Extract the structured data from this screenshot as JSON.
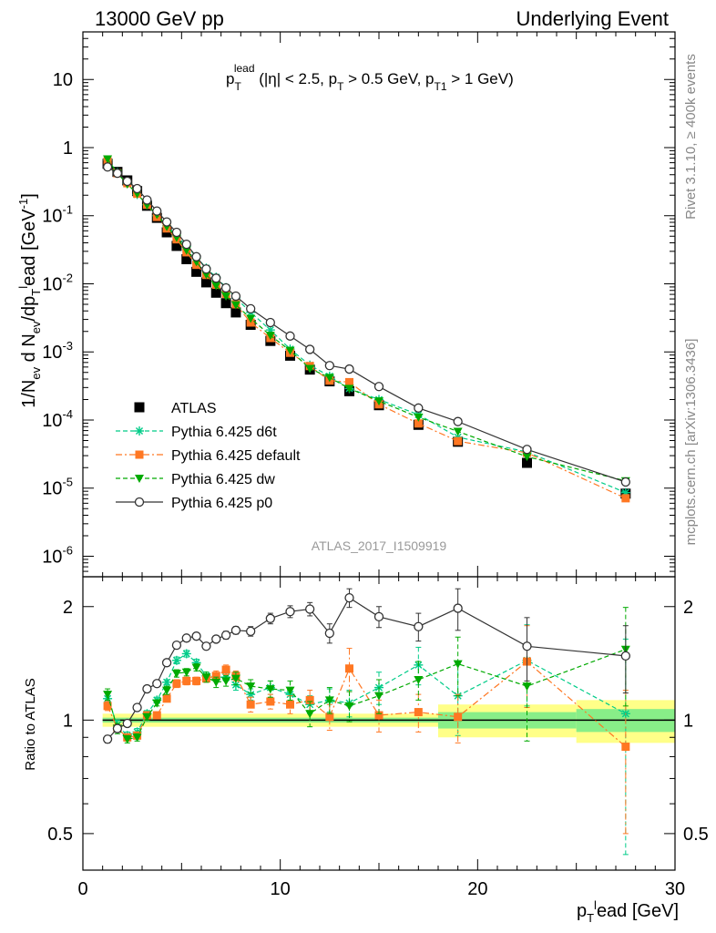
{
  "header": {
    "left": "13000 GeV pp",
    "right": "Underlying Event"
  },
  "side_labels": {
    "rivet": "Rivet 3.1.10, ≥ 400k events",
    "mcplots": "mcplots.cern.ch [arXiv:1306.3436]"
  },
  "analysis_id": "ATLAS_2017_I1509919",
  "colors": {
    "data": "#000000",
    "d6t": "#00cc88",
    "default": "#ff7722",
    "dw": "#00aa00",
    "p0": "#333333",
    "band_outer": "#ffff88",
    "band_inner": "#88ee88"
  },
  "chart_data": [
    {
      "type": "scatter",
      "title_main": "p",
      "title_sub": "T",
      "title_sup": "lead",
      "title_rest": " (|η| < 2.5, p",
      "title_sub2": "T",
      "title_rest2": " > 0.5 GeV, p",
      "title_sub3": "T1",
      "title_rest3": " > 1 GeV)",
      "ylabel": "1/N_ev d N_ev/dp_T^lead [GeV^-1]",
      "ylabel_parts": {
        "a": "1/N",
        "b": "ev",
        "c": " d N",
        "d": "ev",
        "e": "/dp",
        "f": "T",
        "g": "l",
        "h": "ead [GeV",
        "i": "-1",
        "j": "]"
      },
      "yscale": "log",
      "ylim": [
        5e-07,
        50
      ],
      "xlim": [
        0,
        30
      ],
      "ytick_labels": [
        {
          "base": "10",
          "exp": "",
          "val": 10
        },
        {
          "base": "1",
          "exp": "",
          "val": 1
        },
        {
          "base": "10",
          "exp": "-1",
          "val": 0.1
        },
        {
          "base": "10",
          "exp": "-2",
          "val": 0.01
        },
        {
          "base": "10",
          "exp": "-3",
          "val": 0.001
        },
        {
          "base": "10",
          "exp": "-4",
          "val": 0.0001
        },
        {
          "base": "10",
          "exp": "-5",
          "val": 1e-05
        },
        {
          "base": "10",
          "exp": "-6",
          "val": 1e-06
        }
      ],
      "x": [
        1.25,
        1.75,
        2.25,
        2.75,
        3.25,
        3.75,
        4.25,
        4.75,
        5.25,
        5.75,
        6.25,
        6.75,
        7.25,
        7.75,
        8.5,
        9.5,
        10.5,
        11.5,
        12.5,
        13.5,
        15,
        17,
        19,
        22.5,
        27.5
      ],
      "legend": [
        "ATLAS",
        "Pythia 6.425 d6t",
        "Pythia 6.425 default",
        "Pythia 6.425 dw",
        "Pythia 6.425 p0"
      ],
      "series": [
        {
          "name": "ATLAS",
          "values": [
            0.58,
            0.44,
            0.33,
            0.23,
            0.14,
            0.093,
            0.057,
            0.036,
            0.023,
            0.015,
            0.0105,
            0.0074,
            0.0052,
            0.0038,
            0.0025,
            0.00145,
            0.00088,
            0.00055,
            0.00037,
            0.000265,
            0.000165,
            8.5e-05,
            4.8e-05,
            2.35e-05,
            8.3e-06
          ]
        },
        {
          "name": "Pythia 6.425 d6t",
          "values": [
            0.66,
            0.43,
            0.3,
            0.205,
            0.145,
            0.1,
            0.071,
            0.051,
            0.036,
            0.025,
            0.017,
            0.0125,
            0.0088,
            0.0062,
            0.0038,
            0.0021,
            0.0011,
            0.00064,
            0.00044,
            0.00029,
            0.0002,
            0.00012,
            5.6e-05,
            3.4e-05,
            8.6e-06
          ]
        },
        {
          "name": "Pythia 6.425 default",
          "values": [
            0.63,
            0.42,
            0.3,
            0.21,
            0.145,
            0.096,
            0.065,
            0.045,
            0.029,
            0.019,
            0.0135,
            0.0097,
            0.0071,
            0.005,
            0.0027,
            0.0016,
            0.00097,
            0.00062,
            0.00038,
            0.00036,
            0.00017,
            8.9e-05,
            4.9e-05,
            3.3e-05,
            7.1e-06
          ]
        },
        {
          "name": "Pythia 6.425 dw",
          "values": [
            0.68,
            0.42,
            0.29,
            0.21,
            0.143,
            0.104,
            0.069,
            0.048,
            0.031,
            0.021,
            0.0137,
            0.0094,
            0.0066,
            0.0049,
            0.0031,
            0.00175,
            0.00105,
            0.00057,
            0.00042,
            0.00029,
            0.00019,
            0.00011,
            6.8e-05,
            2.9e-05,
            1.28e-05
          ]
        },
        {
          "name": "Pythia 6.425 p0",
          "values": [
            0.52,
            0.42,
            0.32,
            0.25,
            0.17,
            0.117,
            0.081,
            0.057,
            0.038,
            0.025,
            0.0165,
            0.0121,
            0.0087,
            0.0066,
            0.0043,
            0.0027,
            0.00171,
            0.00109,
            0.00063,
            0.00056,
            0.00031,
            0.00015,
            9.5e-05,
            3.7e-05,
            1.23e-05
          ]
        }
      ]
    },
    {
      "type": "scatter",
      "ylabel": "Ratio to ATLAS",
      "xlabel_parts": {
        "a": "p",
        "b": "T",
        "c": "l",
        "d": "ead [GeV]"
      },
      "yscale": "log",
      "ylim": [
        0.4,
        2.4
      ],
      "xlim": [
        0,
        30
      ],
      "xtick_labels": [
        0,
        10,
        20,
        30
      ],
      "ytick_labels": [
        0.5,
        1,
        2
      ],
      "x": [
        1.25,
        1.75,
        2.25,
        2.75,
        3.25,
        3.75,
        4.25,
        4.75,
        5.25,
        5.75,
        6.25,
        6.75,
        7.25,
        7.75,
        8.5,
        9.5,
        10.5,
        11.5,
        12.5,
        13.5,
        15,
        17,
        19,
        22.5,
        27.5
      ],
      "series": [
        {
          "name": "Pythia 6.425 d6t",
          "values": [
            1.14,
            0.97,
            0.91,
            0.93,
            1.04,
            1.13,
            1.26,
            1.44,
            1.5,
            1.42,
            1.31,
            1.3,
            1.3,
            1.24,
            1.17,
            1.22,
            1.17,
            1.1,
            1.13,
            1.11,
            1.22,
            1.4,
            1.16,
            1.44,
            1.04
          ],
          "errors": [
            0.04,
            0.03,
            0.02,
            0.02,
            0.02,
            0.02,
            0.02,
            0.03,
            0.03,
            0.03,
            0.03,
            0.03,
            0.03,
            0.04,
            0.04,
            0.05,
            0.05,
            0.06,
            0.08,
            0.09,
            0.12,
            0.16,
            0.25,
            0.35,
            0.6
          ]
        },
        {
          "name": "Pythia 6.425 default",
          "values": [
            1.09,
            0.95,
            0.9,
            0.91,
            1.03,
            1.03,
            1.14,
            1.25,
            1.27,
            1.27,
            1.29,
            1.31,
            1.36,
            1.31,
            1.1,
            1.12,
            1.1,
            1.13,
            1.02,
            1.37,
            1.03,
            1.05,
            1.02,
            1.43,
            0.85
          ],
          "errors": [
            0.03,
            0.02,
            0.02,
            0.02,
            0.02,
            0.02,
            0.02,
            0.03,
            0.03,
            0.03,
            0.03,
            0.04,
            0.04,
            0.04,
            0.05,
            0.05,
            0.06,
            0.07,
            0.08,
            0.18,
            0.1,
            0.12,
            0.15,
            0.35,
            0.35
          ]
        },
        {
          "name": "Pythia 6.425 dw",
          "values": [
            1.17,
            0.95,
            0.89,
            0.9,
            1.02,
            1.11,
            1.2,
            1.33,
            1.34,
            1.38,
            1.3,
            1.26,
            1.27,
            1.29,
            1.23,
            1.21,
            1.2,
            1.04,
            1.13,
            1.09,
            1.16,
            1.28,
            1.41,
            1.23,
            1.54
          ],
          "errors": [
            0.04,
            0.03,
            0.02,
            0.02,
            0.02,
            0.02,
            0.03,
            0.03,
            0.03,
            0.03,
            0.04,
            0.04,
            0.04,
            0.05,
            0.05,
            0.06,
            0.07,
            0.08,
            0.09,
            0.1,
            0.12,
            0.15,
            0.25,
            0.35,
            0.45
          ]
        },
        {
          "name": "Pythia 6.425 p0",
          "values": [
            0.89,
            0.95,
            0.98,
            1.08,
            1.21,
            1.25,
            1.42,
            1.58,
            1.65,
            1.67,
            1.57,
            1.64,
            1.68,
            1.73,
            1.72,
            1.86,
            1.94,
            1.97,
            1.7,
            2.11,
            1.88,
            1.77,
            1.98,
            1.57,
            1.48
          ],
          "errors": [
            0.02,
            0.02,
            0.02,
            0.02,
            0.02,
            0.02,
            0.02,
            0.03,
            0.03,
            0.03,
            0.03,
            0.03,
            0.04,
            0.04,
            0.05,
            0.06,
            0.07,
            0.08,
            0.1,
            0.12,
            0.12,
            0.15,
            0.25,
            0.3,
            0.3
          ]
        }
      ],
      "bands": [
        {
          "x0": 1,
          "x1": 18,
          "inner": 0.015,
          "outer": 0.04
        },
        {
          "x0": 18,
          "x1": 25,
          "inner": 0.05,
          "outer": 0.1
        },
        {
          "x0": 25,
          "x1": 30,
          "inner": 0.07,
          "outer": 0.13
        }
      ]
    }
  ]
}
